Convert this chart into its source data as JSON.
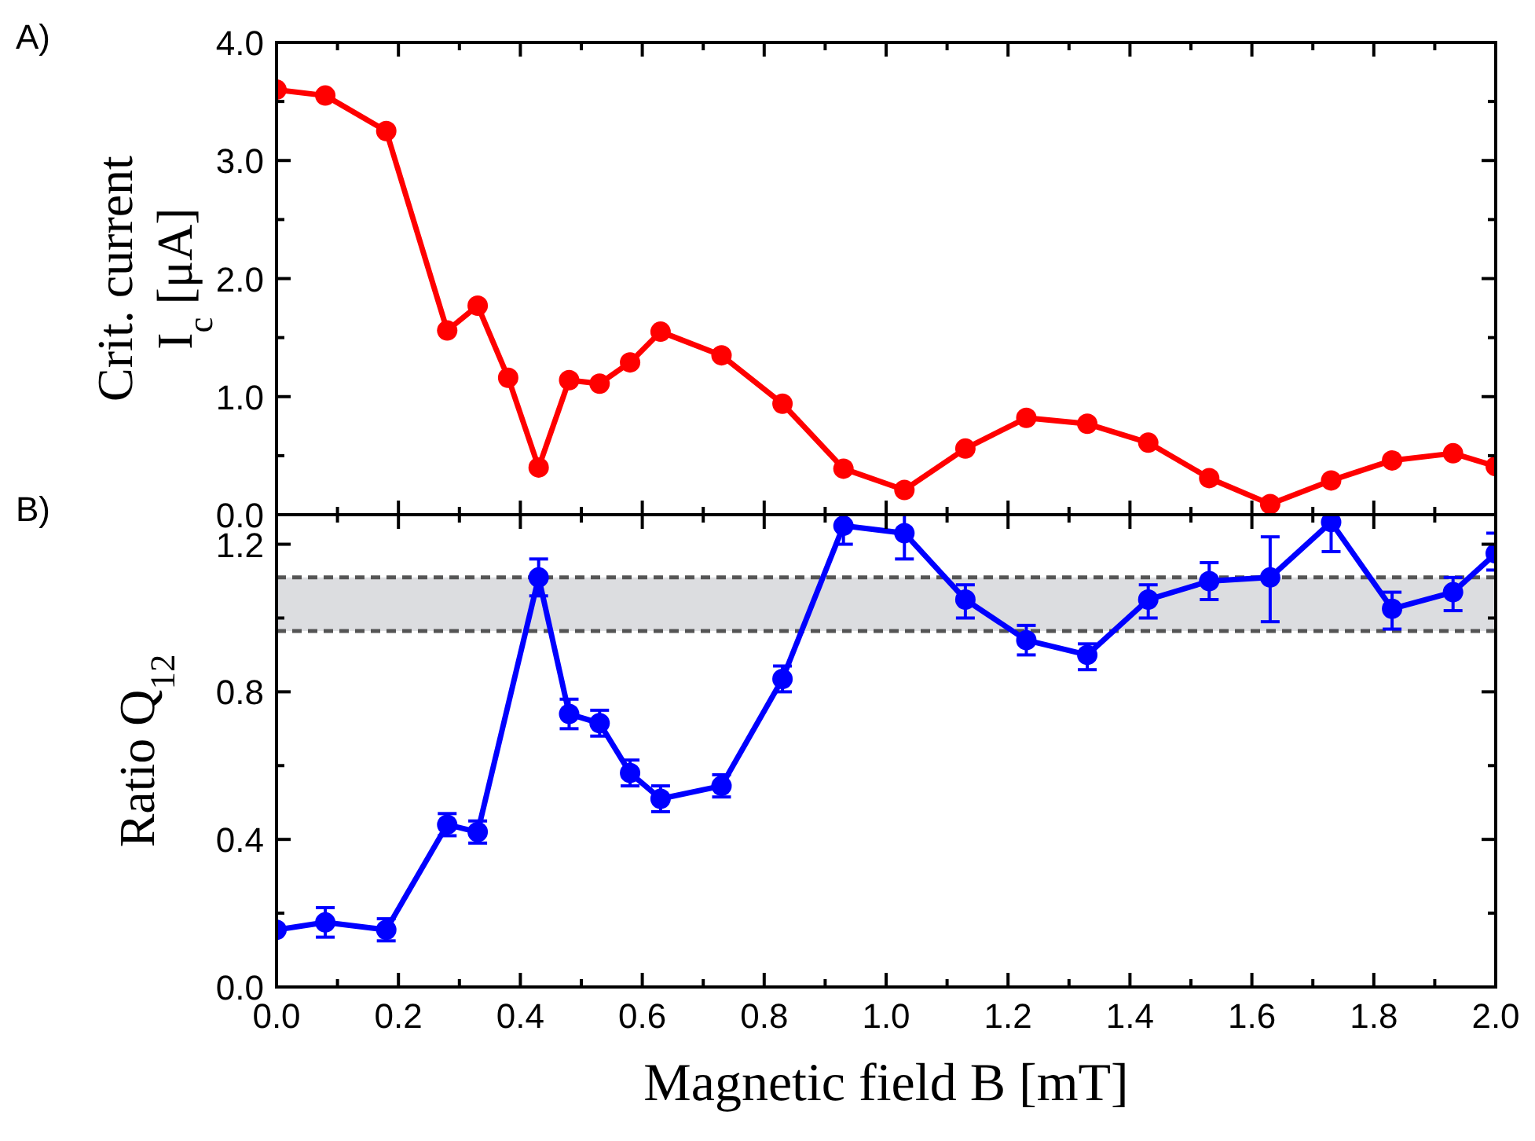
{
  "chart_data": [
    {
      "type": "line",
      "title": "A)",
      "ylabel": "Crit. current\nI$_{c}$ [μA]",
      "marker": "circle",
      "line_style": "solid",
      "grid": false,
      "tick_labels": "y",
      "xlim": [
        0,
        2.0
      ],
      "xticks": [
        {
          "value": 0,
          "label": null
        },
        {
          "value": 0.1,
          "label": null
        },
        {
          "value": 0.2,
          "label": null
        },
        {
          "value": 0.3,
          "label": null
        },
        {
          "value": 0.4,
          "label": null
        },
        {
          "value": 0.5,
          "label": null
        },
        {
          "value": 0.6,
          "label": null
        },
        {
          "value": 0.7,
          "label": null
        },
        {
          "value": 0.8,
          "label": null
        },
        {
          "value": 0.9,
          "label": null
        },
        {
          "value": 1.0,
          "label": null
        },
        {
          "value": 1.1,
          "label": null
        },
        {
          "value": 1.2,
          "label": null
        },
        {
          "value": 1.3,
          "label": null
        },
        {
          "value": 1.4,
          "label": null
        },
        {
          "value": 1.5,
          "label": null
        },
        {
          "value": 1.6,
          "label": null
        },
        {
          "value": 1.7,
          "label": null
        },
        {
          "value": 1.8,
          "label": null
        },
        {
          "value": 1.9,
          "label": null
        },
        {
          "value": 2.0,
          "label": null
        }
      ],
      "ylim": [
        0,
        4
      ],
      "yticks": [
        {
          "value": 0,
          "label": "0.0"
        },
        {
          "value": 0.5,
          "label": null
        },
        {
          "value": 1,
          "label": "1.0"
        },
        {
          "value": 1.5,
          "label": null
        },
        {
          "value": 2,
          "label": "2.0"
        },
        {
          "value": 2.5,
          "label": null
        },
        {
          "value": 3,
          "label": "3.0"
        },
        {
          "value": 3.5,
          "label": null
        },
        {
          "value": 4,
          "label": "4.0"
        }
      ],
      "x": [
        0,
        0.08,
        0.18,
        0.28,
        0.33,
        0.38,
        0.43,
        0.48,
        0.53,
        0.58,
        0.63,
        0.73,
        0.83,
        0.93,
        1.03,
        1.13,
        1.23,
        1.33,
        1.43,
        1.53,
        1.63,
        1.73,
        1.83,
        1.93,
        2.0
      ],
      "series": [
        {
          "color": "#ff0000",
          "values": [
            3.6,
            3.55,
            3.25,
            1.56,
            1.77,
            1.16,
            0.4,
            1.14,
            1.11,
            1.29,
            1.55,
            1.35,
            0.94,
            0.39,
            0.21,
            0.56,
            0.82,
            0.77,
            0.61,
            0.31,
            0.09,
            0.29,
            0.46,
            0.52,
            0.41
          ]
        }
      ]
    },
    {
      "type": "line",
      "title": "B)",
      "ylabel": "Ratio Q$_{12}$",
      "xlabel": "Magnetic field B  [mT]",
      "marker": "circle",
      "line_style": "solid",
      "grid": false,
      "xlim": [
        0,
        2.0
      ],
      "xticks": [
        {
          "value": 0,
          "label": "0.0"
        },
        {
          "value": 0.1,
          "label": null
        },
        {
          "value": 0.2,
          "label": "0.2"
        },
        {
          "value": 0.3,
          "label": null
        },
        {
          "value": 0.4,
          "label": "0.4"
        },
        {
          "value": 0.5,
          "label": null
        },
        {
          "value": 0.6,
          "label": "0.6"
        },
        {
          "value": 0.7,
          "label": null
        },
        {
          "value": 0.8,
          "label": "0.8"
        },
        {
          "value": 0.9,
          "label": null
        },
        {
          "value": 1.0,
          "label": "1.0"
        },
        {
          "value": 1.1,
          "label": null
        },
        {
          "value": 1.2,
          "label": "1.2"
        },
        {
          "value": 1.3,
          "label": null
        },
        {
          "value": 1.4,
          "label": "1.4"
        },
        {
          "value": 1.5,
          "label": null
        },
        {
          "value": 1.6,
          "label": "1.6"
        },
        {
          "value": 1.7,
          "label": null
        },
        {
          "value": 1.8,
          "label": "1.8"
        },
        {
          "value": 1.9,
          "label": null
        },
        {
          "value": 2.0,
          "label": "2.0"
        }
      ],
      "ylim": [
        0,
        1.28
      ],
      "yticks": [
        {
          "value": 0,
          "label": "0.0"
        },
        {
          "value": 0.2,
          "label": null
        },
        {
          "value": 0.4,
          "label": "0.4"
        },
        {
          "value": 0.6,
          "label": null
        },
        {
          "value": 0.8,
          "label": "0.8"
        },
        {
          "value": 1.0,
          "label": null
        },
        {
          "value": 1.2,
          "label": "1.2"
        }
      ],
      "bands": [
        {
          "axis": "y",
          "from": 0.965,
          "to": 1.11,
          "color": "#dcdde0"
        }
      ],
      "ref_lines": [
        {
          "axis": "y",
          "value": 0.965,
          "color": "#555555",
          "line_style": "dashed"
        },
        {
          "axis": "y",
          "value": 1.11,
          "color": "#555555",
          "line_style": "dashed"
        }
      ],
      "x": [
        0,
        0.08,
        0.18,
        0.28,
        0.33,
        0.43,
        0.48,
        0.53,
        0.58,
        0.63,
        0.73,
        0.83,
        0.93,
        1.03,
        1.13,
        1.23,
        1.33,
        1.43,
        1.53,
        1.63,
        1.73,
        1.83,
        1.93,
        2.0
      ],
      "series": [
        {
          "color": "#0000ff",
          "values": [
            0.155,
            0.175,
            0.155,
            0.44,
            0.42,
            1.11,
            0.74,
            0.715,
            0.58,
            0.51,
            0.545,
            0.835,
            1.25,
            1.23,
            1.05,
            0.94,
            0.9,
            1.05,
            1.1,
            1.11,
            1.26,
            1.025,
            1.07,
            1.175
          ],
          "errors": [
            null,
            [
              0.135,
              0.215
            ],
            [
              0.125,
              0.185
            ],
            [
              0.41,
              0.47
            ],
            [
              0.39,
              0.45
            ],
            [
              1.06,
              1.16
            ],
            [
              0.7,
              0.78
            ],
            [
              0.68,
              0.75
            ],
            [
              0.545,
              0.615
            ],
            [
              0.475,
              0.545
            ],
            [
              0.515,
              0.575
            ],
            [
              0.8,
              0.87
            ],
            [
              1.2,
              1.28
            ],
            [
              1.16,
              1.28
            ],
            [
              1.0,
              1.09
            ],
            [
              0.9,
              0.98
            ],
            [
              0.86,
              0.93
            ],
            [
              1.0,
              1.09
            ],
            [
              1.05,
              1.15
            ],
            [
              0.99,
              1.22
            ],
            [
              1.18,
              1.28
            ],
            [
              0.97,
              1.07
            ],
            [
              1.02,
              1.11
            ],
            [
              1.13,
              1.23
            ]
          ]
        }
      ]
    }
  ]
}
